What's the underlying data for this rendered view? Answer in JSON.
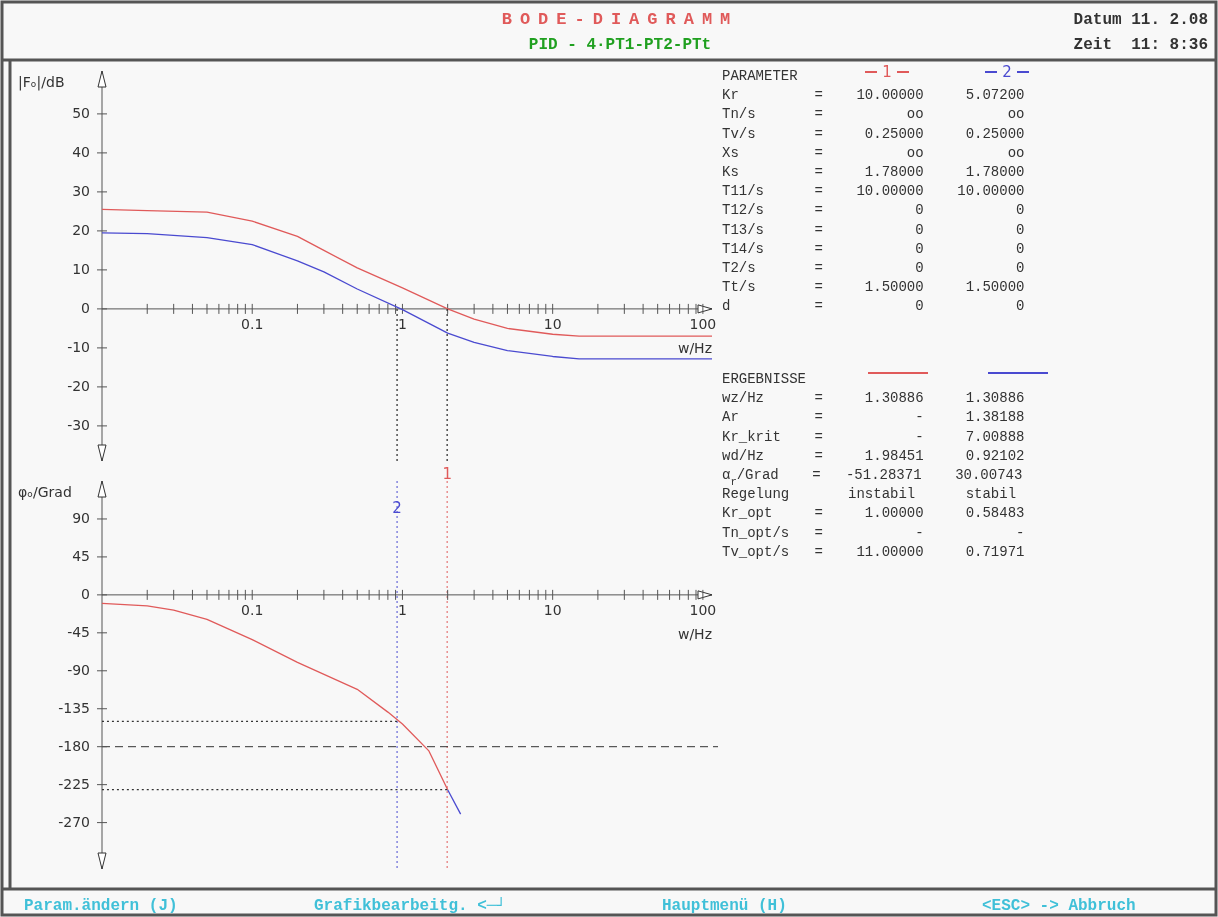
{
  "chart_data": [
    {
      "type": "line",
      "title": "BODE-DIAGRAMM",
      "subtitle": "PID - 4·PT1-PT2-PTt",
      "xlabel": "w/Hz",
      "ylabel": "|Fₒ|/dB",
      "log": "x",
      "grid": false,
      "legend": "top right",
      "marker": "none",
      "line_style": "solid",
      "xlim": [
        0.01,
        115
      ],
      "xticks": [
        {
          "value": 0.02,
          "label": null
        },
        {
          "value": 0.03,
          "label": null
        },
        {
          "value": 0.04,
          "label": null
        },
        {
          "value": 0.05,
          "label": null
        },
        {
          "value": 0.06,
          "label": null
        },
        {
          "value": 0.07,
          "label": null
        },
        {
          "value": 0.08,
          "label": null
        },
        {
          "value": 0.09,
          "label": null
        },
        {
          "value": 0.1,
          "label": "0.1"
        },
        {
          "value": 0.2,
          "label": null
        },
        {
          "value": 0.3,
          "label": null
        },
        {
          "value": 0.4,
          "label": null
        },
        {
          "value": 0.5,
          "label": null
        },
        {
          "value": 0.6,
          "label": null
        },
        {
          "value": 0.7,
          "label": null
        },
        {
          "value": 0.8,
          "label": null
        },
        {
          "value": 0.9,
          "label": null
        },
        1,
        {
          "value": 2,
          "label": null
        },
        {
          "value": 3,
          "label": null
        },
        {
          "value": 4,
          "label": null
        },
        {
          "value": 5,
          "label": null
        },
        {
          "value": 6,
          "label": null
        },
        {
          "value": 7,
          "label": null
        },
        {
          "value": 8,
          "label": null
        },
        {
          "value": 9,
          "label": null
        },
        10,
        {
          "value": 20,
          "label": null
        },
        {
          "value": 30,
          "label": null
        },
        {
          "value": 40,
          "label": null
        },
        {
          "value": 50,
          "label": null
        },
        {
          "value": 60,
          "label": null
        },
        {
          "value": 70,
          "label": null
        },
        {
          "value": 80,
          "label": null
        },
        {
          "value": 90,
          "label": null
        },
        100
      ],
      "ylim": [
        -39,
        61
      ],
      "yticks": [
        -30,
        -20,
        -10,
        0,
        10,
        20,
        30,
        40,
        50
      ],
      "x": [
        0.01,
        0.02,
        0.05,
        0.1,
        0.2,
        0.3,
        0.5,
        1,
        2,
        3,
        5,
        10,
        15,
        20,
        50,
        115
      ],
      "series": [
        {
          "name": "1",
          "color": "#e05a5a",
          "values": [
            25.5,
            25.2,
            24.8,
            22.5,
            18.6,
            15,
            10.5,
            5.4,
            0,
            -2.6,
            -5,
            -6.5,
            -7,
            -7,
            -7,
            -7
          ]
        },
        {
          "name": "2",
          "color": "#4a4ad0",
          "values": [
            19.5,
            19.3,
            18.3,
            16.5,
            12.3,
            9.5,
            5.1,
            -0.2,
            -6.2,
            -8.6,
            -10.7,
            -12.2,
            -12.8,
            -12.8,
            -12.8,
            -12.8
          ]
        },
        {
          "color": "#333333",
          "line_style": "dotted",
          "x": [
            0.92102,
            0.92102
          ],
          "values": [
            0,
            -39
          ]
        },
        {
          "color": "#333333",
          "line_style": "dotted",
          "x": [
            1.98451,
            1.98451
          ],
          "values": [
            0,
            -39
          ]
        }
      ],
      "annotations": [
        "Datum 11. 2.08",
        "Zeit  11: 8:36",
        "Param.ändern (J)",
        "Grafikbearbeitg. <─┘",
        "Hauptmenü (H)",
        "<ESC> -> Abbruch"
      ]
    },
    {
      "type": "line",
      "xlabel": "w/Hz",
      "ylabel": "φₒ/Grad",
      "log": "x",
      "grid": false,
      "marker": "none",
      "line_style": "solid",
      "xlim": [
        0.01,
        115
      ],
      "xticks": [
        {
          "value": 0.02,
          "label": null
        },
        {
          "value": 0.03,
          "label": null
        },
        {
          "value": 0.04,
          "label": null
        },
        {
          "value": 0.05,
          "label": null
        },
        {
          "value": 0.06,
          "label": null
        },
        {
          "value": 0.07,
          "label": null
        },
        {
          "value": 0.08,
          "label": null
        },
        {
          "value": 0.09,
          "label": null
        },
        {
          "value": 0.1,
          "label": "0.1"
        },
        {
          "value": 0.2,
          "label": null
        },
        {
          "value": 0.3,
          "label": null
        },
        {
          "value": 0.4,
          "label": null
        },
        {
          "value": 0.5,
          "label": null
        },
        {
          "value": 0.6,
          "label": null
        },
        {
          "value": 0.7,
          "label": null
        },
        {
          "value": 0.8,
          "label": null
        },
        {
          "value": 0.9,
          "label": null
        },
        1,
        {
          "value": 2,
          "label": null
        },
        {
          "value": 3,
          "label": null
        },
        {
          "value": 4,
          "label": null
        },
        {
          "value": 5,
          "label": null
        },
        {
          "value": 6,
          "label": null
        },
        {
          "value": 7,
          "label": null
        },
        {
          "value": 8,
          "label": null
        },
        {
          "value": 9,
          "label": null
        },
        10,
        {
          "value": 20,
          "label": null
        },
        {
          "value": 30,
          "label": null
        },
        {
          "value": 40,
          "label": null
        },
        {
          "value": 50,
          "label": null
        },
        {
          "value": 60,
          "label": null
        },
        {
          "value": 70,
          "label": null
        },
        {
          "value": 80,
          "label": null
        },
        {
          "value": 90,
          "label": null
        },
        100
      ],
      "ylim": [
        -325,
        135
      ],
      "yticks": [
        -270,
        -225,
        -180,
        -135,
        -90,
        -45,
        0,
        45,
        90
      ],
      "series": [
        {
          "color": "#4a4ad0",
          "x": [
            2,
            2.44
          ],
          "values": [
            -231,
            -260
          ]
        },
        {
          "color": "#e05a5a",
          "x": [
            0.01,
            0.02,
            0.03,
            0.05,
            0.1,
            0.2,
            0.5,
            0.8,
            1,
            1.5,
            2
          ],
          "values": [
            -10,
            -13,
            -18,
            -29,
            -53,
            -80,
            -112,
            -139,
            -153,
            -185,
            -231
          ]
        },
        {
          "color": "#333333",
          "line_style": "dotted",
          "x": [
            0.01,
            0.92102
          ],
          "values": [
            -150,
            -150
          ]
        },
        {
          "color": "#333333",
          "line_style": "dotted",
          "x": [
            0.01,
            1.98451
          ],
          "values": [
            -231,
            -231
          ]
        }
      ],
      "ref_lines": [
        {
          "axis": "x",
          "value": 1.98451,
          "color": "#e05a5a",
          "line_style": "dotted"
        },
        {
          "axis": "x",
          "value": 0.92102,
          "color": "#4a4ad0",
          "line_style": "dotted"
        },
        {
          "axis": "y",
          "value": -180,
          "color": "#333333",
          "line_style": "dashed"
        }
      ],
      "annotations": [
        {
          "text": "1",
          "x": 1.98451,
          "y": 135
        },
        {
          "text": "2",
          "x": 0.92102,
          "y": 95
        }
      ]
    },
    {
      "type": "other",
      "title": "PARAMETER",
      "annotations": [
        "Kr         =    10.00000     5.07200",
        "Tn/s       =          oo          oo",
        "Tv/s       =     0.25000     0.25000",
        "Xs         =          oo          oo",
        "Ks         =     1.78000     1.78000",
        "T11/s      =    10.00000    10.00000",
        "T12/s      =           0           0",
        "T13/s      =           0           0",
        "T14/s      =           0           0",
        "T2/s       =           0           0",
        "Tt/s       =     1.50000     1.50000",
        "d          =           0           0"
      ]
    },
    {
      "type": "other",
      "title": "ERGEBNISSE",
      "annotations": [
        "wz/Hz      =     1.30886     1.30886",
        "Ar         =           -     1.38188",
        "Kr_krit    =           -     7.00888",
        "wd/Hz      =     1.98451     0.92102",
        "α$_{r}$/Grad    =   -51.28371    30.00743",
        "Regelung       instabil      stabil",
        "Kr_opt     =     1.00000     0.58483",
        "Tn_opt/s   =           -           -",
        "Tv_opt/s   =    11.00000     0.71971"
      ]
    }
  ]
}
